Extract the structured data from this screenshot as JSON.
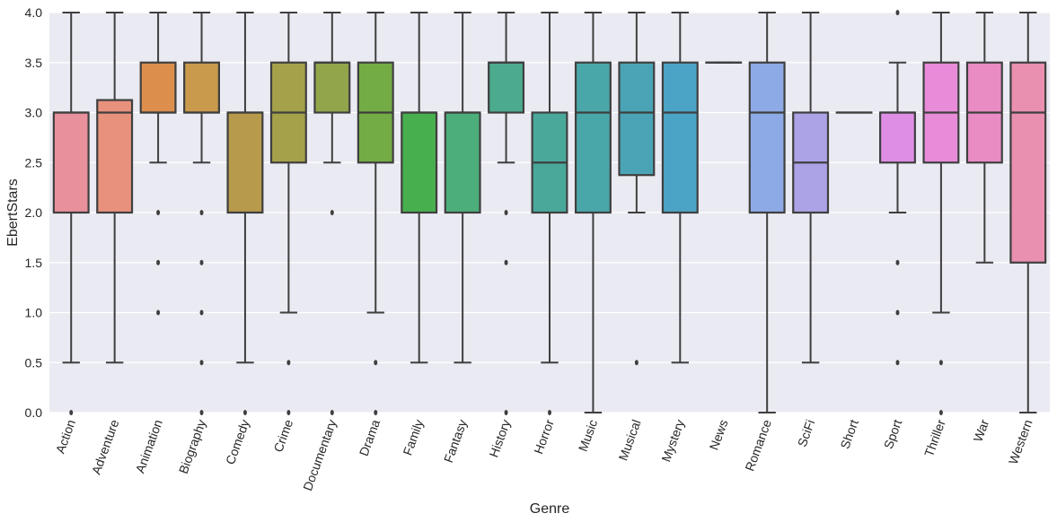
{
  "chart_data": {
    "type": "box",
    "title": "",
    "xlabel": "Genre",
    "ylabel": "EbertStars",
    "ylim": [
      0,
      4
    ],
    "yticks": [
      0.0,
      0.5,
      1.0,
      1.5,
      2.0,
      2.5,
      3.0,
      3.5,
      4.0
    ],
    "ytick_labels": [
      "0.0",
      "0.5",
      "1.0",
      "1.5",
      "2.0",
      "2.5",
      "3.0",
      "3.5",
      "4.0"
    ],
    "grid": true,
    "legend": "none",
    "categories": [
      "Action",
      "Adventure",
      "Animation",
      "Biography",
      "Comedy",
      "Crime",
      "Documentary",
      "Drama",
      "Family",
      "Fantasy",
      "History",
      "Horror",
      "Music",
      "Musical",
      "Mystery",
      "News",
      "Romance",
      "SciFi",
      "Short",
      "Sport",
      "Thriller",
      "War",
      "Western"
    ],
    "boxes": [
      {
        "genre": "Action",
        "q1": 2.0,
        "median": 3.0,
        "q3": 3.0,
        "whisker_low": 0.5,
        "whisker_high": 4.0,
        "outliers": [
          0.0
        ],
        "color": "#e8909c"
      },
      {
        "genre": "Adventure",
        "q1": 2.0,
        "median": 3.0,
        "q3": 3.125,
        "whisker_low": 0.5,
        "whisker_high": 4.0,
        "outliers": [],
        "color": "#e8927e"
      },
      {
        "genre": "Animation",
        "q1": 3.0,
        "median": 3.0,
        "q3": 3.5,
        "whisker_low": 2.5,
        "whisker_high": 4.0,
        "outliers": [
          2.0,
          1.5,
          1.0
        ],
        "color": "#dc8f4c"
      },
      {
        "genre": "Biography",
        "q1": 3.0,
        "median": 3.0,
        "q3": 3.5,
        "whisker_low": 2.5,
        "whisker_high": 4.0,
        "outliers": [
          2.0,
          1.5,
          1.0,
          0.5,
          0.0
        ],
        "color": "#c99a4c"
      },
      {
        "genre": "Comedy",
        "q1": 2.0,
        "median": 3.0,
        "q3": 3.0,
        "whisker_low": 0.5,
        "whisker_high": 4.0,
        "outliers": [
          0.0
        ],
        "color": "#b79a4b"
      },
      {
        "genre": "Crime",
        "q1": 2.5,
        "median": 3.0,
        "q3": 3.5,
        "whisker_low": 1.0,
        "whisker_high": 4.0,
        "outliers": [
          0.5,
          0.0
        ],
        "color": "#a5a14a"
      },
      {
        "genre": "Documentary",
        "q1": 3.0,
        "median": 3.5,
        "q3": 3.5,
        "whisker_low": 2.5,
        "whisker_high": 4.0,
        "outliers": [
          2.0,
          0.0
        ],
        "color": "#93a54b"
      },
      {
        "genre": "Drama",
        "q1": 2.5,
        "median": 3.0,
        "q3": 3.5,
        "whisker_low": 1.0,
        "whisker_high": 4.0,
        "outliers": [
          0.5,
          0.0
        ],
        "color": "#73ab45"
      },
      {
        "genre": "Family",
        "q1": 2.0,
        "median": 3.0,
        "q3": 3.0,
        "whisker_low": 0.5,
        "whisker_high": 4.0,
        "outliers": [],
        "color": "#47af4e"
      },
      {
        "genre": "Fantasy",
        "q1": 2.0,
        "median": 3.0,
        "q3": 3.0,
        "whisker_low": 0.5,
        "whisker_high": 4.0,
        "outliers": [],
        "color": "#4cae7a"
      },
      {
        "genre": "History",
        "q1": 3.0,
        "median": 3.5,
        "q3": 3.5,
        "whisker_low": 2.5,
        "whisker_high": 4.0,
        "outliers": [
          2.0,
          1.5,
          0.0
        ],
        "color": "#4cab8f"
      },
      {
        "genre": "Horror",
        "q1": 2.0,
        "median": 2.5,
        "q3": 3.0,
        "whisker_low": 0.5,
        "whisker_high": 4.0,
        "outliers": [
          0.0
        ],
        "color": "#4aa89b"
      },
      {
        "genre": "Music",
        "q1": 2.0,
        "median": 3.0,
        "q3": 3.5,
        "whisker_low": 0.0,
        "whisker_high": 4.0,
        "outliers": [],
        "color": "#4aa7a9"
      },
      {
        "genre": "Musical",
        "q1": 2.375,
        "median": 3.0,
        "q3": 3.5,
        "whisker_low": 2.0,
        "whisker_high": 4.0,
        "outliers": [
          0.5
        ],
        "color": "#4aa4b5"
      },
      {
        "genre": "Mystery",
        "q1": 2.0,
        "median": 3.0,
        "q3": 3.5,
        "whisker_low": 0.5,
        "whisker_high": 4.0,
        "outliers": [],
        "color": "#4ba4c6"
      },
      {
        "genre": "News",
        "q1": 3.5,
        "median": 3.5,
        "q3": 3.5,
        "whisker_low": 3.5,
        "whisker_high": 3.5,
        "outliers": [],
        "color": "#6ea3d9"
      },
      {
        "genre": "Romance",
        "q1": 2.0,
        "median": 3.0,
        "q3": 3.5,
        "whisker_low": 0.0,
        "whisker_high": 4.0,
        "outliers": [],
        "color": "#8eaae6"
      },
      {
        "genre": "SciFi",
        "q1": 2.0,
        "median": 2.5,
        "q3": 3.0,
        "whisker_low": 0.5,
        "whisker_high": 4.0,
        "outliers": [],
        "color": "#aca2e6"
      },
      {
        "genre": "Short",
        "q1": 3.0,
        "median": 3.0,
        "q3": 3.0,
        "whisker_low": 3.0,
        "whisker_high": 3.0,
        "outliers": [],
        "color": "#c69ae6"
      },
      {
        "genre": "Sport",
        "q1": 2.5,
        "median": 3.0,
        "q3": 3.0,
        "whisker_low": 2.0,
        "whisker_high": 3.5,
        "outliers": [
          4.0,
          1.5,
          1.0,
          0.5
        ],
        "color": "#df8ee6"
      },
      {
        "genre": "Thriller",
        "q1": 2.5,
        "median": 3.0,
        "q3": 3.5,
        "whisker_low": 1.0,
        "whisker_high": 4.0,
        "outliers": [
          0.5,
          0.0
        ],
        "color": "#e88cd9"
      },
      {
        "genre": "War",
        "q1": 2.5,
        "median": 3.0,
        "q3": 3.5,
        "whisker_low": 1.5,
        "whisker_high": 4.0,
        "outliers": [],
        "color": "#e98cc4"
      },
      {
        "genre": "Western",
        "q1": 1.5,
        "median": 3.0,
        "q3": 3.5,
        "whisker_low": 0.0,
        "whisker_high": 4.0,
        "outliers": [],
        "color": "#e98faf"
      }
    ]
  }
}
